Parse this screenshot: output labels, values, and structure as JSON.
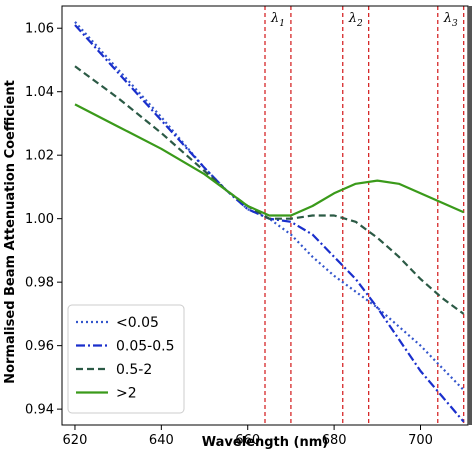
{
  "chart_data": {
    "type": "line",
    "xlabel": "Wavelength (nm)",
    "ylabel": "Normalised Beam Attenuation Coefficient",
    "xlim": [
      617,
      711
    ],
    "ylim": [
      0.935,
      1.067
    ],
    "x_ticks": [
      620,
      640,
      660,
      680,
      700
    ],
    "y_ticks": [
      0.94,
      0.96,
      0.98,
      1.0,
      1.02,
      1.04,
      1.06
    ],
    "y_tick_labels": [
      "0.94",
      "0.96",
      "0.98",
      "1.00",
      "1.02",
      "1.04",
      "1.06"
    ],
    "grid": false,
    "legend_position": "lower-left",
    "series": [
      {
        "name": "<0.05",
        "style": "dotted",
        "color": "#3355cc",
        "x": [
          620,
          630,
          640,
          650,
          655,
          660,
          665,
          670,
          675,
          680,
          685,
          690,
          695,
          700,
          705,
          710
        ],
        "y": [
          1.062,
          1.047,
          1.032,
          1.016,
          1.009,
          1.003,
          1.0,
          0.995,
          0.988,
          0.982,
          0.977,
          0.972,
          0.966,
          0.96,
          0.953,
          0.946
        ]
      },
      {
        "name": "0.05-0.5",
        "style": "dashdot",
        "color": "#1a2fcc",
        "x": [
          620,
          630,
          640,
          650,
          655,
          660,
          665,
          670,
          675,
          680,
          685,
          690,
          695,
          700,
          705,
          710
        ],
        "y": [
          1.061,
          1.046,
          1.031,
          1.016,
          1.009,
          1.003,
          1.0,
          0.999,
          0.995,
          0.988,
          0.981,
          0.972,
          0.962,
          0.952,
          0.944,
          0.936
        ]
      },
      {
        "name": "0.5-2",
        "style": "dashed",
        "color": "#2b5a45",
        "x": [
          620,
          630,
          640,
          650,
          655,
          660,
          665,
          670,
          675,
          680,
          685,
          690,
          695,
          700,
          705,
          710
        ],
        "y": [
          1.048,
          1.038,
          1.027,
          1.015,
          1.009,
          1.004,
          1.0,
          1.0,
          1.001,
          1.001,
          0.999,
          0.994,
          0.988,
          0.981,
          0.975,
          0.97
        ]
      },
      {
        "name": ">2",
        "style": "solid",
        "color": "#3a9a1a",
        "x": [
          620,
          630,
          640,
          650,
          655,
          660,
          665,
          670,
          675,
          680,
          685,
          690,
          695,
          700,
          705,
          710
        ],
        "y": [
          1.036,
          1.029,
          1.022,
          1.014,
          1.009,
          1.004,
          1.001,
          1.001,
          1.004,
          1.008,
          1.011,
          1.012,
          1.011,
          1.008,
          1.005,
          1.002
        ]
      }
    ],
    "vertical_lines": {
      "color": "#d62728",
      "style": "dashed",
      "x": [
        664,
        670,
        682,
        688,
        704,
        710
      ]
    },
    "annotations": [
      {
        "label": "λ",
        "sub": "1",
        "x": 667
      },
      {
        "label": "λ",
        "sub": "2",
        "x": 685
      },
      {
        "label": "λ",
        "sub": "3",
        "x": 707
      }
    ]
  }
}
